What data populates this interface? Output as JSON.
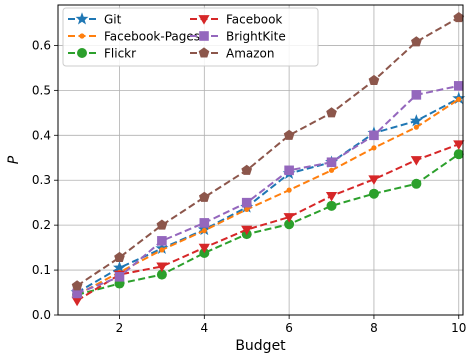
{
  "chart_data": {
    "type": "line",
    "xlabel": "Budget",
    "ylabel": "P",
    "xlim": [
      0.55,
      10.1
    ],
    "ylim": [
      0.0,
      0.69
    ],
    "xticks": [
      2,
      4,
      6,
      8,
      10
    ],
    "yticks": [
      0.0,
      0.1,
      0.2,
      0.3,
      0.4,
      0.5,
      0.6
    ],
    "grid": true,
    "legend_position": "top-left",
    "x": [
      1,
      2,
      3,
      4,
      5,
      6,
      7,
      8,
      9,
      10
    ],
    "series": [
      {
        "name": "Git",
        "color": "#1f77b4",
        "marker": "star",
        "values": [
          0.05,
          0.105,
          0.148,
          0.19,
          0.24,
          0.315,
          0.34,
          0.405,
          0.432,
          0.482
        ]
      },
      {
        "name": "Facebook-Pages",
        "color": "#ff7f0e",
        "marker": "dot",
        "values": [
          0.045,
          0.095,
          0.145,
          0.188,
          0.235,
          0.278,
          0.322,
          0.372,
          0.418,
          0.48
        ]
      },
      {
        "name": "Flickr",
        "color": "#2ca02c",
        "marker": "circle",
        "values": [
          0.045,
          0.07,
          0.09,
          0.138,
          0.18,
          0.202,
          0.243,
          0.27,
          0.292,
          0.358
        ]
      },
      {
        "name": "Facebook",
        "color": "#d62728",
        "marker": "triangle-down",
        "values": [
          0.032,
          0.09,
          0.108,
          0.15,
          0.19,
          0.218,
          0.265,
          0.302,
          0.345,
          0.38
        ]
      },
      {
        "name": "BrightKite",
        "color": "#9467bd",
        "marker": "square",
        "values": [
          0.048,
          0.085,
          0.165,
          0.205,
          0.25,
          0.322,
          0.34,
          0.4,
          0.49,
          0.51
        ]
      },
      {
        "name": "Amazon",
        "color": "#8c564b",
        "marker": "pentagon",
        "values": [
          0.065,
          0.128,
          0.2,
          0.262,
          0.322,
          0.4,
          0.45,
          0.522,
          0.608,
          0.662
        ]
      }
    ]
  }
}
